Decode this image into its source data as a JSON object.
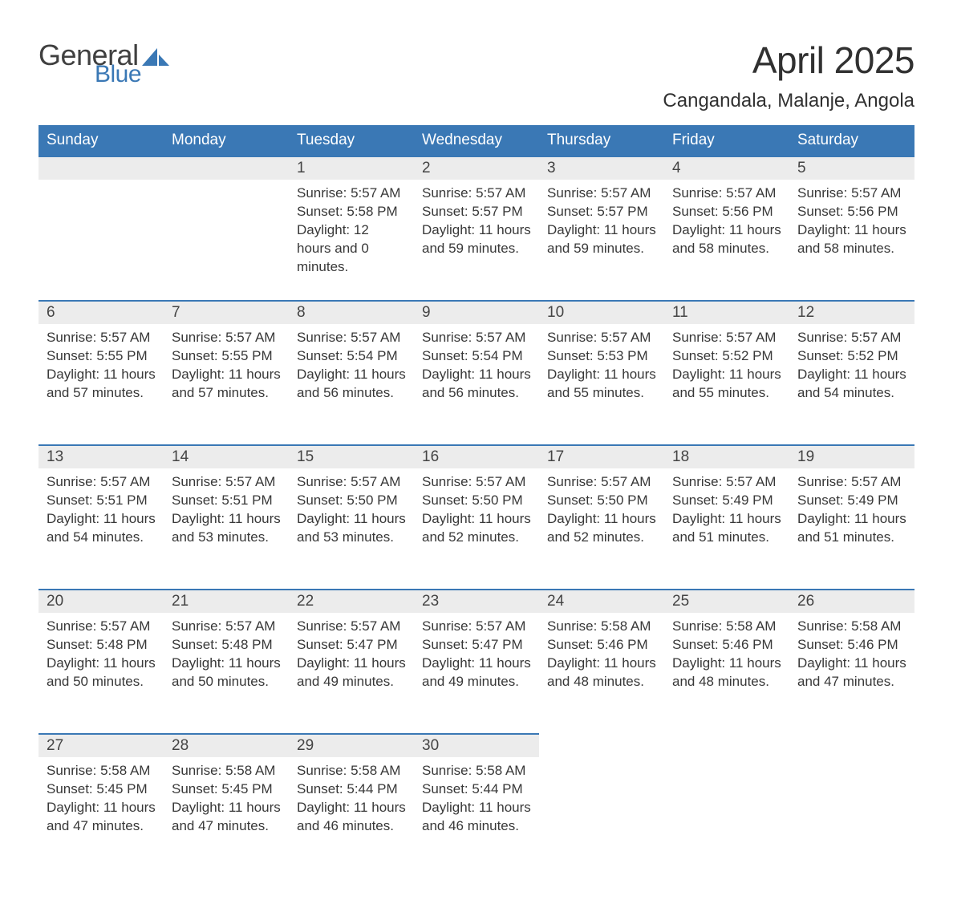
{
  "logo": {
    "text_general": "General",
    "text_blue": "Blue",
    "sail_color": "#3a78b5",
    "general_color": "#404040"
  },
  "title": "April 2025",
  "location": "Cangandala, Malanje, Angola",
  "colors": {
    "header_bg": "#3a78b5",
    "header_text": "#ffffff",
    "daynum_bg": "#ececec",
    "daynum_border": "#3a78b5",
    "body_text": "#383838",
    "page_bg": "#ffffff"
  },
  "columns": [
    "Sunday",
    "Monday",
    "Tuesday",
    "Wednesday",
    "Thursday",
    "Friday",
    "Saturday"
  ],
  "weeks": [
    [
      null,
      null,
      {
        "n": "1",
        "sunrise": "5:57 AM",
        "sunset": "5:58 PM",
        "daylight": "12 hours and 0 minutes."
      },
      {
        "n": "2",
        "sunrise": "5:57 AM",
        "sunset": "5:57 PM",
        "daylight": "11 hours and 59 minutes."
      },
      {
        "n": "3",
        "sunrise": "5:57 AM",
        "sunset": "5:57 PM",
        "daylight": "11 hours and 59 minutes."
      },
      {
        "n": "4",
        "sunrise": "5:57 AM",
        "sunset": "5:56 PM",
        "daylight": "11 hours and 58 minutes."
      },
      {
        "n": "5",
        "sunrise": "5:57 AM",
        "sunset": "5:56 PM",
        "daylight": "11 hours and 58 minutes."
      }
    ],
    [
      {
        "n": "6",
        "sunrise": "5:57 AM",
        "sunset": "5:55 PM",
        "daylight": "11 hours and 57 minutes."
      },
      {
        "n": "7",
        "sunrise": "5:57 AM",
        "sunset": "5:55 PM",
        "daylight": "11 hours and 57 minutes."
      },
      {
        "n": "8",
        "sunrise": "5:57 AM",
        "sunset": "5:54 PM",
        "daylight": "11 hours and 56 minutes."
      },
      {
        "n": "9",
        "sunrise": "5:57 AM",
        "sunset": "5:54 PM",
        "daylight": "11 hours and 56 minutes."
      },
      {
        "n": "10",
        "sunrise": "5:57 AM",
        "sunset": "5:53 PM",
        "daylight": "11 hours and 55 minutes."
      },
      {
        "n": "11",
        "sunrise": "5:57 AM",
        "sunset": "5:52 PM",
        "daylight": "11 hours and 55 minutes."
      },
      {
        "n": "12",
        "sunrise": "5:57 AM",
        "sunset": "5:52 PM",
        "daylight": "11 hours and 54 minutes."
      }
    ],
    [
      {
        "n": "13",
        "sunrise": "5:57 AM",
        "sunset": "5:51 PM",
        "daylight": "11 hours and 54 minutes."
      },
      {
        "n": "14",
        "sunrise": "5:57 AM",
        "sunset": "5:51 PM",
        "daylight": "11 hours and 53 minutes."
      },
      {
        "n": "15",
        "sunrise": "5:57 AM",
        "sunset": "5:50 PM",
        "daylight": "11 hours and 53 minutes."
      },
      {
        "n": "16",
        "sunrise": "5:57 AM",
        "sunset": "5:50 PM",
        "daylight": "11 hours and 52 minutes."
      },
      {
        "n": "17",
        "sunrise": "5:57 AM",
        "sunset": "5:50 PM",
        "daylight": "11 hours and 52 minutes."
      },
      {
        "n": "18",
        "sunrise": "5:57 AM",
        "sunset": "5:49 PM",
        "daylight": "11 hours and 51 minutes."
      },
      {
        "n": "19",
        "sunrise": "5:57 AM",
        "sunset": "5:49 PM",
        "daylight": "11 hours and 51 minutes."
      }
    ],
    [
      {
        "n": "20",
        "sunrise": "5:57 AM",
        "sunset": "5:48 PM",
        "daylight": "11 hours and 50 minutes."
      },
      {
        "n": "21",
        "sunrise": "5:57 AM",
        "sunset": "5:48 PM",
        "daylight": "11 hours and 50 minutes."
      },
      {
        "n": "22",
        "sunrise": "5:57 AM",
        "sunset": "5:47 PM",
        "daylight": "11 hours and 49 minutes."
      },
      {
        "n": "23",
        "sunrise": "5:57 AM",
        "sunset": "5:47 PM",
        "daylight": "11 hours and 49 minutes."
      },
      {
        "n": "24",
        "sunrise": "5:58 AM",
        "sunset": "5:46 PM",
        "daylight": "11 hours and 48 minutes."
      },
      {
        "n": "25",
        "sunrise": "5:58 AM",
        "sunset": "5:46 PM",
        "daylight": "11 hours and 48 minutes."
      },
      {
        "n": "26",
        "sunrise": "5:58 AM",
        "sunset": "5:46 PM",
        "daylight": "11 hours and 47 minutes."
      }
    ],
    [
      {
        "n": "27",
        "sunrise": "5:58 AM",
        "sunset": "5:45 PM",
        "daylight": "11 hours and 47 minutes."
      },
      {
        "n": "28",
        "sunrise": "5:58 AM",
        "sunset": "5:45 PM",
        "daylight": "11 hours and 47 minutes."
      },
      {
        "n": "29",
        "sunrise": "5:58 AM",
        "sunset": "5:44 PM",
        "daylight": "11 hours and 46 minutes."
      },
      {
        "n": "30",
        "sunrise": "5:58 AM",
        "sunset": "5:44 PM",
        "daylight": "11 hours and 46 minutes."
      },
      null,
      null,
      null
    ]
  ],
  "labels": {
    "sunrise": "Sunrise:",
    "sunset": "Sunset:",
    "daylight": "Daylight:"
  }
}
